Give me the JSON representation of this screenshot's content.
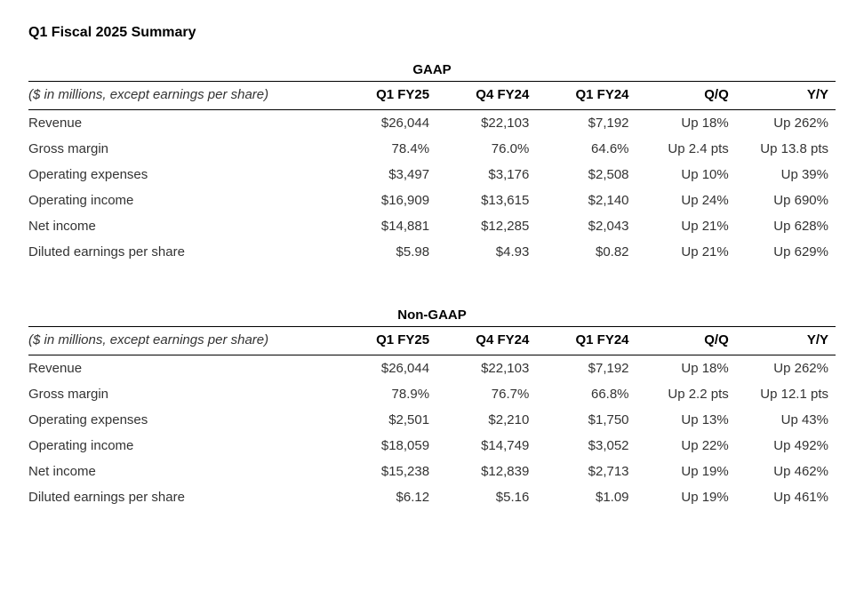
{
  "title": "Q1 Fiscal 2025 Summary",
  "note": "($ in millions, except earnings per share)",
  "columns": [
    "Q1 FY25",
    "Q4 FY24",
    "Q1 FY24",
    "Q/Q",
    "Y/Y"
  ],
  "sections": [
    {
      "name": "GAAP",
      "rows": [
        {
          "metric": "Revenue",
          "v": [
            "$26,044",
            "$22,103",
            "$7,192",
            "Up 18%",
            "Up 262%"
          ]
        },
        {
          "metric": "Gross margin",
          "v": [
            "78.4%",
            "76.0%",
            "64.6%",
            "Up 2.4 pts",
            "Up 13.8 pts"
          ]
        },
        {
          "metric": "Operating expenses",
          "v": [
            "$3,497",
            "$3,176",
            "$2,508",
            "Up 10%",
            "Up 39%"
          ]
        },
        {
          "metric": "Operating income",
          "v": [
            "$16,909",
            "$13,615",
            "$2,140",
            "Up 24%",
            "Up 690%"
          ]
        },
        {
          "metric": "Net income",
          "v": [
            "$14,881",
            "$12,285",
            "$2,043",
            "Up 21%",
            "Up 628%"
          ]
        },
        {
          "metric": "Diluted earnings per share",
          "v": [
            "$5.98",
            "$4.93",
            "$0.82",
            "Up 21%",
            "Up 629%"
          ]
        }
      ]
    },
    {
      "name": "Non-GAAP",
      "rows": [
        {
          "metric": "Revenue",
          "v": [
            "$26,044",
            "$22,103",
            "$7,192",
            "Up 18%",
            "Up 262%"
          ]
        },
        {
          "metric": "Gross margin",
          "v": [
            "78.9%",
            "76.7%",
            "66.8%",
            "Up 2.2 pts",
            "Up 12.1 pts"
          ]
        },
        {
          "metric": "Operating expenses",
          "v": [
            "$2,501",
            "$2,210",
            "$1,750",
            "Up 13%",
            "Up 43%"
          ]
        },
        {
          "metric": "Operating income",
          "v": [
            "$18,059",
            "$14,749",
            "$3,052",
            "Up 22%",
            "Up 492%"
          ]
        },
        {
          "metric": "Net income",
          "v": [
            "$15,238",
            "$12,839",
            "$2,713",
            "Up 19%",
            "Up 462%"
          ]
        },
        {
          "metric": "Diluted earnings per share",
          "v": [
            "$6.12",
            "$5.16",
            "$1.09",
            "Up 19%",
            "Up 461%"
          ]
        }
      ]
    }
  ]
}
